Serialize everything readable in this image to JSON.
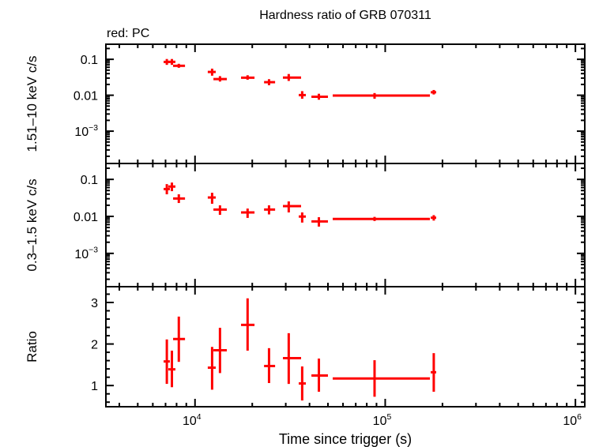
{
  "chart_data": {
    "type": "scatter",
    "title": "Hardness ratio of GRB 070311",
    "subtitle": "red: PC",
    "xlabel": "Time since trigger (s)",
    "xscale": "log",
    "xlim": [
      3400,
      1120000
    ],
    "x_tick_labels": [
      {
        "base": "10",
        "exp": "4",
        "value": 10000
      },
      {
        "base": "10",
        "exp": "5",
        "value": 100000
      },
      {
        "base": "10",
        "exp": "6",
        "value": 1000000
      }
    ],
    "color": "#ff0000",
    "grid": false,
    "x": [
      7110,
      7560,
      8220,
      12300,
      13530,
      18900,
      24500,
      31100,
      36600,
      44800,
      87900,
      180000
    ],
    "x_err": [
      [
        6840,
        7380
      ],
      [
        7240,
        7890
      ],
      [
        7670,
        8860
      ],
      [
        11670,
        12850
      ],
      [
        12500,
        14700
      ],
      [
        17460,
        20550
      ],
      [
        23070,
        26370
      ],
      [
        28990,
        36120
      ],
      [
        35100,
        38260
      ],
      [
        40940,
        50000
      ],
      [
        52970,
        171800
      ],
      [
        173500,
        185400
      ]
    ],
    "panels": [
      {
        "ylabel": "1.51–10 keV c/s",
        "yscale": "log",
        "ylim": [
          0.000126,
          0.263
        ],
        "y_tick_labels": [
          {
            "text": "0.1",
            "value": 0.1
          },
          {
            "text": "0.01",
            "value": 0.01
          },
          {
            "base": "10",
            "exp": "−3",
            "value": 0.001
          }
        ],
        "values": [
          0.0846,
          0.085,
          0.066,
          0.0445,
          0.0282,
          0.0308,
          0.0231,
          0.031,
          0.0101,
          0.0091,
          0.0098,
          0.0121
        ],
        "y_err": [
          [
            0.07,
            0.102
          ],
          [
            0.07,
            0.102
          ],
          [
            0.058,
            0.075
          ],
          [
            0.035,
            0.055
          ],
          [
            0.024,
            0.034
          ],
          [
            0.027,
            0.036
          ],
          [
            0.019,
            0.028
          ],
          [
            0.025,
            0.039
          ],
          [
            0.008,
            0.013
          ],
          [
            0.0075,
            0.011
          ],
          [
            0.008,
            0.0115
          ],
          [
            0.0105,
            0.014
          ]
        ]
      },
      {
        "ylabel": "0.3–1.5 keV c/s",
        "yscale": "log",
        "ylim": [
          0.000126,
          0.269
        ],
        "y_tick_labels": [
          {
            "text": "0.1",
            "value": 0.1
          },
          {
            "text": "0.01",
            "value": 0.01
          },
          {
            "base": "10",
            "exp": "−3",
            "value": 0.001
          }
        ],
        "values": [
          0.0547,
          0.064,
          0.0304,
          0.0324,
          0.0153,
          0.0128,
          0.0153,
          0.0189,
          0.0099,
          0.0073,
          0.0085,
          0.0092
        ],
        "y_err": [
          [
            0.0395,
            0.0745
          ],
          [
            0.048,
            0.082
          ],
          [
            0.023,
            0.0395
          ],
          [
            0.0219,
            0.0435
          ],
          [
            0.011,
            0.0199
          ],
          [
            0.0091,
            0.0163
          ],
          [
            0.0113,
            0.0199
          ],
          [
            0.0128,
            0.0254
          ],
          [
            0.0068,
            0.0128
          ],
          [
            0.0053,
            0.0095
          ],
          [
            0.0075,
            0.0097
          ],
          [
            0.0077,
            0.0108
          ]
        ]
      },
      {
        "ylabel": "Ratio",
        "yscale": "linear",
        "ylim": [
          0.49,
          3.38
        ],
        "y_tick_labels": [
          {
            "text": "1",
            "value": 1
          },
          {
            "text": "2",
            "value": 2
          },
          {
            "text": "3",
            "value": 3
          }
        ],
        "values": [
          1.58,
          1.39,
          2.12,
          1.43,
          1.85,
          2.46,
          1.47,
          1.66,
          1.05,
          1.24,
          1.17,
          1.32
        ],
        "y_err": [
          [
            1.04,
            2.11
          ],
          [
            0.96,
            1.84
          ],
          [
            1.57,
            2.66
          ],
          [
            0.9,
            1.93
          ],
          [
            1.3,
            2.39
          ],
          [
            1.84,
            3.1
          ],
          [
            1.06,
            1.9
          ],
          [
            1.04,
            2.26
          ],
          [
            0.64,
            1.46
          ],
          [
            0.85,
            1.65
          ],
          [
            0.73,
            1.61
          ],
          [
            0.85,
            1.78
          ]
        ]
      }
    ]
  }
}
